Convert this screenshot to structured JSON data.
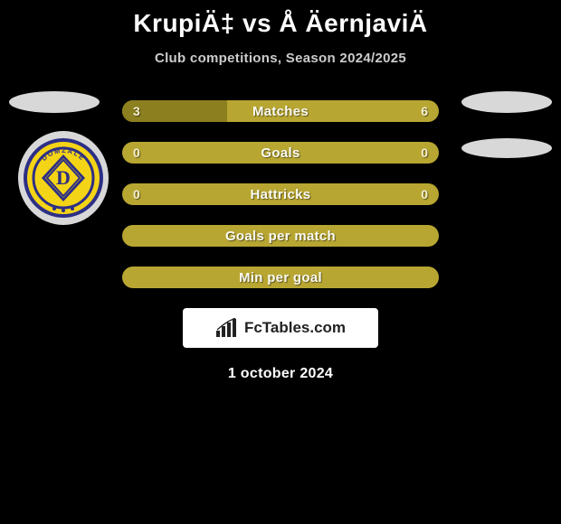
{
  "header": {
    "title": "KrupiÄ‡ vs Å ÄernjaviÄ",
    "subtitle": "Club competitions, Season 2024/2025"
  },
  "colors": {
    "background": "#000000",
    "bar_base": "#b8a632",
    "bar_fill_dark": "#8c7f1f",
    "text_light": "#fafaf2",
    "avatar_bg": "#d8d8d8"
  },
  "bars": [
    {
      "label": "Matches",
      "left": "3",
      "right": "6",
      "left_pct": 33,
      "right_pct": 67,
      "show_vals": true,
      "split": true
    },
    {
      "label": "Goals",
      "left": "0",
      "right": "0",
      "left_pct": 0,
      "right_pct": 0,
      "show_vals": true,
      "split": false
    },
    {
      "label": "Hattricks",
      "left": "0",
      "right": "0",
      "left_pct": 0,
      "right_pct": 0,
      "show_vals": true,
      "split": false
    },
    {
      "label": "Goals per match",
      "left": "",
      "right": "",
      "left_pct": 0,
      "right_pct": 0,
      "show_vals": false,
      "split": false
    },
    {
      "label": "Min per goal",
      "left": "",
      "right": "",
      "left_pct": 0,
      "right_pct": 0,
      "show_vals": false,
      "split": false
    }
  ],
  "brand": {
    "text": "FcTables.com"
  },
  "footer": {
    "date": "1 october 2024"
  },
  "emblem": {
    "top_text": "DOMŽALE",
    "letter": "D",
    "outer": "#2d2f86",
    "inner": "#f4d416"
  }
}
